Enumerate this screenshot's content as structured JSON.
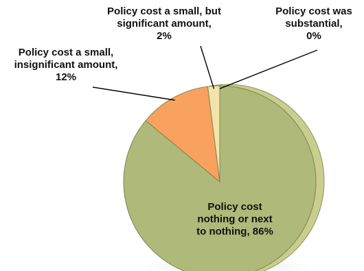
{
  "chart_data": {
    "type": "pie",
    "title": "",
    "slices": [
      {
        "label_lines": [
          "Policy cost",
          "nothing or next",
          "to nothing, 86%"
        ],
        "value": 86,
        "color": "#aeb97a"
      },
      {
        "label_lines": [
          "Policy cost a small,",
          "insignificant amount,",
          "12%"
        ],
        "value": 12,
        "color": "#f9a15e"
      },
      {
        "label_lines": [
          "Policy cost a small, but",
          "significant amount,",
          "2%"
        ],
        "value": 2,
        "color": "#f3e3ab"
      },
      {
        "label_lines": [
          "Policy cost was",
          "substantial,",
          "0%"
        ],
        "value": 0,
        "color": "#c9cd8e"
      }
    ]
  }
}
